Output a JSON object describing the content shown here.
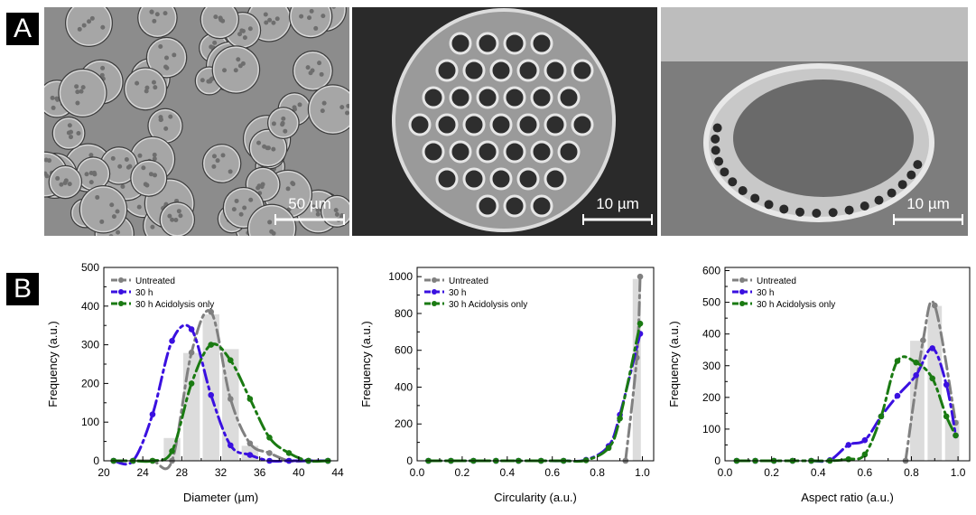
{
  "panels": {
    "a_label": "A",
    "b_label": "B"
  },
  "micrographs": [
    {
      "scale_label": "50 µm",
      "view": "field of pollen grains",
      "tone": "#8c8c8c"
    },
    {
      "scale_label": "10 µm",
      "view": "single reticulate grain",
      "tone": "#5f5f5f"
    },
    {
      "scale_label": "10 µm",
      "view": "cross-section of grain",
      "tone": "#7d7d7d"
    }
  ],
  "colors": {
    "untreated": "#808080",
    "h30": "#3a10e0",
    "acid": "#1a7a12",
    "bar": "#dcdcdc"
  },
  "chart_data": [
    {
      "type": "bar",
      "xlabel": "Diameter (µm)",
      "ylabel": "Frequency (a.u.)",
      "xlim": [
        20,
        44
      ],
      "ylim": [
        0,
        500
      ],
      "xticks": [
        20,
        24,
        28,
        32,
        36,
        40,
        44
      ],
      "xtick_labels": [
        "20",
        "24",
        "28",
        "32",
        "36",
        "40",
        "44"
      ],
      "yticks": [
        0,
        100,
        200,
        300,
        400,
        500
      ],
      "ytick_labels": [
        "0",
        "100",
        "200",
        "300",
        "400",
        "500"
      ],
      "bars": {
        "x": [
          27,
          29,
          31,
          33,
          35
        ],
        "values": [
          60,
          280,
          380,
          290,
          40
        ],
        "width": 1.8
      },
      "legend": [
        "Untreated",
        "30 h",
        "30 h Acidolysis only"
      ],
      "series": [
        {
          "name": "Untreated",
          "x": [
            21,
            23,
            25,
            27,
            29,
            31,
            33,
            35,
            37,
            39,
            41,
            43
          ],
          "y": [
            0,
            0,
            0,
            0,
            280,
            385,
            160,
            45,
            20,
            0,
            0,
            0
          ]
        },
        {
          "name": "30 h",
          "x": [
            21,
            23,
            25,
            27,
            29,
            31,
            33,
            35,
            37,
            39,
            41,
            43
          ],
          "y": [
            0,
            0,
            120,
            310,
            340,
            170,
            40,
            15,
            0,
            0,
            0,
            0
          ]
        },
        {
          "name": "30 h Acidolysis only",
          "x": [
            21,
            23,
            25,
            27,
            29,
            31,
            33,
            35,
            37,
            39,
            41,
            43
          ],
          "y": [
            0,
            0,
            0,
            25,
            200,
            300,
            260,
            160,
            60,
            20,
            0,
            0
          ]
        }
      ]
    },
    {
      "type": "bar",
      "xlabel": "Circularity (a.u.)",
      "ylabel": "Frequency (a.u.)",
      "xlim": [
        0,
        1.05
      ],
      "ylim": [
        0,
        1050
      ],
      "xticks": [
        0,
        0.2,
        0.4,
        0.6,
        0.8,
        1.0
      ],
      "xtick_labels": [
        "0.0",
        "0.2",
        "0.4",
        "0.6",
        "0.8",
        "1.0"
      ],
      "yticks": [
        0,
        200,
        400,
        600,
        800,
        1000
      ],
      "ytick_labels": [
        "0",
        "200",
        "400",
        "600",
        "800",
        "1000"
      ],
      "bars": {
        "x": [
          0.975
        ],
        "values": [
          990
        ],
        "width": 0.04
      },
      "legend": [
        "Untreated",
        "30 h",
        "30 h Acidolysis only"
      ],
      "series": [
        {
          "name": "Untreated",
          "x": [
            0.925,
            0.975,
            0.99
          ],
          "y": [
            0,
            560,
            1000
          ]
        },
        {
          "name": "30 h",
          "x": [
            0.05,
            0.15,
            0.25,
            0.35,
            0.45,
            0.55,
            0.65,
            0.75,
            0.85,
            0.9,
            0.99
          ],
          "y": [
            0,
            0,
            0,
            0,
            0,
            0,
            0,
            5,
            80,
            250,
            690
          ]
        },
        {
          "name": "30 h Acidolysis only",
          "x": [
            0.05,
            0.15,
            0.25,
            0.35,
            0.45,
            0.55,
            0.65,
            0.75,
            0.85,
            0.9,
            0.99
          ],
          "y": [
            0,
            0,
            0,
            0,
            0,
            0,
            0,
            3,
            70,
            230,
            745
          ]
        }
      ]
    },
    {
      "type": "bar",
      "xlabel": "Aspect ratio (a.u.)",
      "ylabel": "Frequency (a.u.)",
      "xlim": [
        0,
        1.05
      ],
      "ylim": [
        0,
        610
      ],
      "xticks": [
        0,
        0.2,
        0.4,
        0.6,
        0.8,
        1.0
      ],
      "xtick_labels": [
        "0.0",
        "0.2",
        "0.4",
        "0.6",
        "0.8",
        "1.0"
      ],
      "yticks": [
        0,
        100,
        200,
        300,
        400,
        500,
        600
      ],
      "ytick_labels": [
        "0",
        "100",
        "200",
        "300",
        "400",
        "500",
        "600"
      ],
      "bars": {
        "x": [
          0.825,
          0.9,
          0.975
        ],
        "values": [
          380,
          490,
          130
        ],
        "width": 0.065
      },
      "legend": [
        "Untreated",
        "30 h",
        "30 h Acidolysis only"
      ],
      "series": [
        {
          "name": "Untreated",
          "x": [
            0.775,
            0.85,
            0.9,
            0.99
          ],
          "y": [
            0,
            380,
            490,
            120
          ]
        },
        {
          "name": "30 h",
          "x": [
            0.05,
            0.13,
            0.21,
            0.29,
            0.37,
            0.45,
            0.53,
            0.6,
            0.67,
            0.74,
            0.82,
            0.89,
            0.95,
            0.99
          ],
          "y": [
            0,
            0,
            0,
            0,
            0,
            2,
            50,
            65,
            140,
            205,
            270,
            355,
            240,
            80
          ]
        },
        {
          "name": "30 h Acidolysis only",
          "x": [
            0.05,
            0.13,
            0.21,
            0.29,
            0.37,
            0.45,
            0.53,
            0.6,
            0.67,
            0.74,
            0.82,
            0.89,
            0.95,
            0.99
          ],
          "y": [
            0,
            0,
            0,
            0,
            0,
            0,
            5,
            20,
            140,
            315,
            310,
            260,
            140,
            80
          ]
        }
      ]
    }
  ]
}
